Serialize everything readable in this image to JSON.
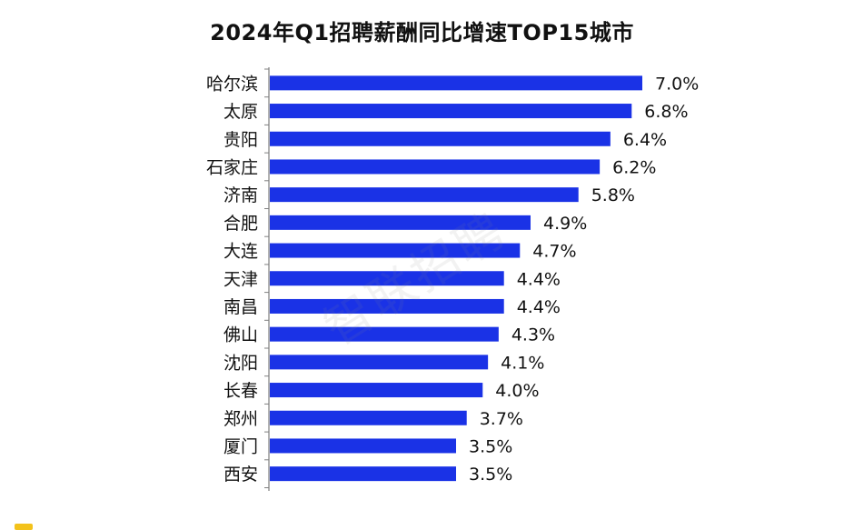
{
  "colors": {
    "bar": "#1a32e6",
    "axis": "#7f7f7f",
    "watermark": "#8a8a8a",
    "corner_mark": "#f3c21b"
  },
  "watermark_text": "智联招聘",
  "chart_data": {
    "type": "bar",
    "orientation": "horizontal",
    "title": "2024年Q1招聘薪酬同比增速TOP15城市",
    "xlabel": "",
    "ylabel": "",
    "xlim": [
      0,
      7.0
    ],
    "grid": false,
    "legend": "none",
    "categories": [
      "哈尔滨",
      "太原",
      "贵阳",
      "石家庄",
      "济南",
      "合肥",
      "大连",
      "天津",
      "南昌",
      "佛山",
      "沈阳",
      "长春",
      "郑州",
      "厦门",
      "西安"
    ],
    "values": [
      7.0,
      6.8,
      6.4,
      6.2,
      5.8,
      4.9,
      4.7,
      4.4,
      4.4,
      4.3,
      4.1,
      4.0,
      3.7,
      3.5,
      3.5
    ],
    "value_labels": [
      "7.0%",
      "6.8%",
      "6.4%",
      "6.2%",
      "5.8%",
      "4.9%",
      "4.7%",
      "4.4%",
      "4.4%",
      "4.3%",
      "4.1%",
      "4.0%",
      "3.7%",
      "3.5%",
      "3.5%"
    ]
  }
}
